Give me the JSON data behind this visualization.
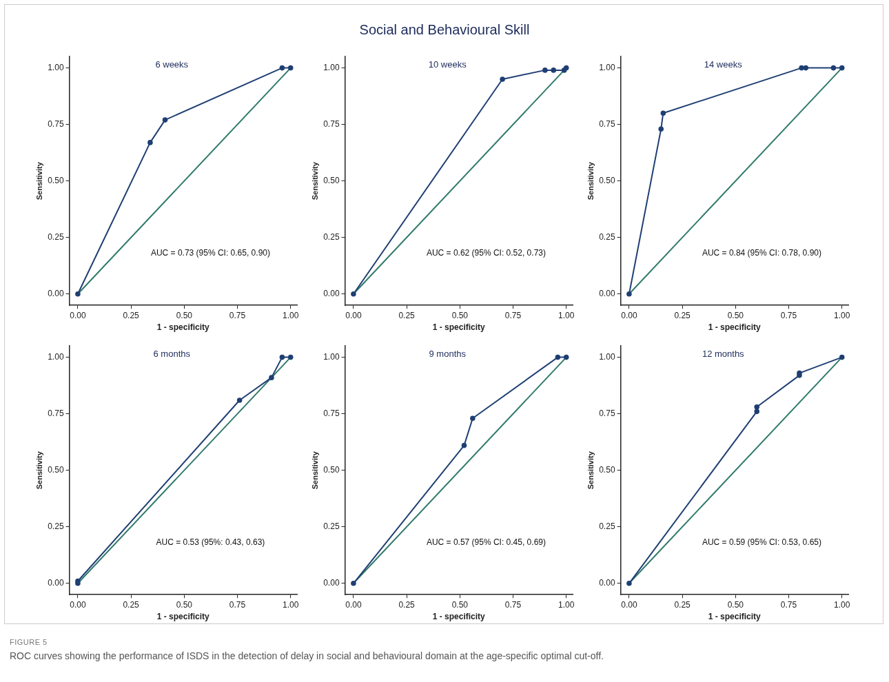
{
  "chart_data": [
    {
      "type": "line",
      "title": "6 weeks",
      "xlabel": "1 - specificity",
      "ylabel": "Sensitivity",
      "xlim": [
        -0.04,
        1.03
      ],
      "ylim": [
        -0.05,
        1.05
      ],
      "xticks": [
        {
          "value": 0,
          "label": "0.00"
        },
        {
          "value": 0.25,
          "label": "0.25"
        },
        {
          "value": 0.5,
          "label": "0.50"
        },
        {
          "value": 0.75,
          "label": "0.75"
        },
        {
          "value": 1,
          "label": "1.00"
        }
      ],
      "yticks": [
        {
          "value": 0,
          "label": "0.00"
        },
        {
          "value": 0.25,
          "label": "0.25"
        },
        {
          "value": 0.5,
          "label": "0.50"
        },
        {
          "value": 0.75,
          "label": "0.75"
        },
        {
          "value": 1,
          "label": "1.00"
        }
      ],
      "grid": false,
      "legend": false,
      "marker": "circle",
      "line_style": "solid",
      "series": [
        {
          "color": "#1f3f73",
          "x": [
            0,
            0.34,
            0.41,
            0.96,
            1
          ],
          "values": [
            0,
            0.67,
            0.77,
            1,
            1
          ]
        },
        {
          "color": "#2f7a6a",
          "marker": "none",
          "x": [
            0,
            1
          ],
          "values": [
            0,
            1
          ]
        }
      ],
      "annotations": [
        "AUC = 0.73 (95% CI: 0.65, 0.90)"
      ]
    },
    {
      "type": "line",
      "title": "10 weeks",
      "xlabel": "1 - specificity",
      "ylabel": "Sensitivity",
      "xlim": [
        -0.04,
        1.03
      ],
      "ylim": [
        -0.05,
        1.05
      ],
      "xticks": [
        {
          "value": 0,
          "label": "0.00"
        },
        {
          "value": 0.25,
          "label": "0.25"
        },
        {
          "value": 0.5,
          "label": "0.50"
        },
        {
          "value": 0.75,
          "label": "0.75"
        },
        {
          "value": 1,
          "label": "1.00"
        }
      ],
      "yticks": [
        {
          "value": 0,
          "label": "0.00"
        },
        {
          "value": 0.25,
          "label": "0.25"
        },
        {
          "value": 0.5,
          "label": "0.50"
        },
        {
          "value": 0.75,
          "label": "0.75"
        },
        {
          "value": 1,
          "label": "1.00"
        }
      ],
      "grid": false,
      "legend": false,
      "marker": "circle",
      "line_style": "solid",
      "series": [
        {
          "color": "#1f3f73",
          "x": [
            0,
            0.7,
            0.9,
            0.94,
            0.99,
            1
          ],
          "values": [
            0,
            0.95,
            0.99,
            0.99,
            0.99,
            1
          ]
        },
        {
          "color": "#2f7a6a",
          "marker": "none",
          "x": [
            0,
            1
          ],
          "values": [
            0,
            1
          ]
        }
      ],
      "annotations": [
        "AUC = 0.62 (95% CI: 0.52, 0.73)",
        "Social and Behavioural Skill"
      ]
    },
    {
      "type": "line",
      "title": "14 weeks",
      "xlabel": "1 - specificity",
      "ylabel": "Sensitivity",
      "xlim": [
        -0.04,
        1.03
      ],
      "ylim": [
        -0.05,
        1.05
      ],
      "xticks": [
        {
          "value": 0,
          "label": "0.00"
        },
        {
          "value": 0.25,
          "label": "0.25"
        },
        {
          "value": 0.5,
          "label": "0.50"
        },
        {
          "value": 0.75,
          "label": "0.75"
        },
        {
          "value": 1,
          "label": "1.00"
        }
      ],
      "yticks": [
        {
          "value": 0,
          "label": "0.00"
        },
        {
          "value": 0.25,
          "label": "0.25"
        },
        {
          "value": 0.5,
          "label": "0.50"
        },
        {
          "value": 0.75,
          "label": "0.75"
        },
        {
          "value": 1,
          "label": "1.00"
        }
      ],
      "grid": false,
      "legend": false,
      "marker": "circle",
      "line_style": "solid",
      "series": [
        {
          "color": "#1f3f73",
          "x": [
            0,
            0.15,
            0.16,
            0.81,
            0.83,
            0.96,
            1
          ],
          "values": [
            0,
            0.73,
            0.8,
            1,
            1,
            1,
            1
          ]
        },
        {
          "color": "#2f7a6a",
          "marker": "none",
          "x": [
            0,
            1
          ],
          "values": [
            0,
            1
          ]
        }
      ],
      "annotations": [
        "AUC = 0.84 (95% CI: 0.78, 0.90)"
      ]
    },
    {
      "type": "line",
      "title": "6 months",
      "xlabel": "1 - specificity",
      "ylabel": "Sensitivity",
      "xlim": [
        -0.04,
        1.03
      ],
      "ylim": [
        -0.05,
        1.05
      ],
      "xticks": [
        {
          "value": 0,
          "label": "0.00"
        },
        {
          "value": 0.25,
          "label": "0.25"
        },
        {
          "value": 0.5,
          "label": "0.50"
        },
        {
          "value": 0.75,
          "label": "0.75"
        },
        {
          "value": 1,
          "label": "1.00"
        }
      ],
      "yticks": [
        {
          "value": 0,
          "label": "0.00"
        },
        {
          "value": 0.25,
          "label": "0.25"
        },
        {
          "value": 0.5,
          "label": "0.50"
        },
        {
          "value": 0.75,
          "label": "0.75"
        },
        {
          "value": 1,
          "label": "1.00"
        }
      ],
      "grid": false,
      "legend": false,
      "marker": "circle",
      "line_style": "solid",
      "series": [
        {
          "color": "#1f3f73",
          "x": [
            0,
            0,
            0.76,
            0.91,
            0.96,
            1
          ],
          "values": [
            0,
            0.01,
            0.81,
            0.91,
            1,
            1
          ]
        },
        {
          "color": "#2f7a6a",
          "marker": "none",
          "x": [
            0,
            1
          ],
          "values": [
            0,
            1
          ]
        }
      ],
      "annotations": [
        "AUC = 0.53 (95%: 0.43, 0.63)"
      ]
    },
    {
      "type": "line",
      "title": "9 months",
      "xlabel": "1 - specificity",
      "ylabel": "Sensitivity",
      "xlim": [
        -0.04,
        1.03
      ],
      "ylim": [
        -0.05,
        1.05
      ],
      "xticks": [
        {
          "value": 0,
          "label": "0.00"
        },
        {
          "value": 0.25,
          "label": "0.25"
        },
        {
          "value": 0.5,
          "label": "0.50"
        },
        {
          "value": 0.75,
          "label": "0.75"
        },
        {
          "value": 1,
          "label": "1.00"
        }
      ],
      "yticks": [
        {
          "value": 0,
          "label": "0.00"
        },
        {
          "value": 0.25,
          "label": "0.25"
        },
        {
          "value": 0.5,
          "label": "0.50"
        },
        {
          "value": 0.75,
          "label": "0.75"
        },
        {
          "value": 1,
          "label": "1.00"
        }
      ],
      "grid": false,
      "legend": false,
      "marker": "circle",
      "line_style": "solid",
      "series": [
        {
          "color": "#1f3f73",
          "x": [
            0,
            0.52,
            0.56,
            0.96,
            1
          ],
          "values": [
            0,
            0.61,
            0.73,
            1,
            1
          ]
        },
        {
          "color": "#2f7a6a",
          "marker": "none",
          "x": [
            0,
            1
          ],
          "values": [
            0,
            1
          ]
        }
      ],
      "annotations": [
        "AUC = 0.57 (95% CI: 0.45, 0.69)"
      ]
    },
    {
      "type": "line",
      "title": "12 months",
      "xlabel": "1 - specificity",
      "ylabel": "Sensitivity",
      "xlim": [
        -0.04,
        1.03
      ],
      "ylim": [
        -0.05,
        1.05
      ],
      "xticks": [
        {
          "value": 0,
          "label": "0.00"
        },
        {
          "value": 0.25,
          "label": "0.25"
        },
        {
          "value": 0.5,
          "label": "0.50"
        },
        {
          "value": 0.75,
          "label": "0.75"
        },
        {
          "value": 1,
          "label": "1.00"
        }
      ],
      "yticks": [
        {
          "value": 0,
          "label": "0.00"
        },
        {
          "value": 0.25,
          "label": "0.25"
        },
        {
          "value": 0.5,
          "label": "0.50"
        },
        {
          "value": 0.75,
          "label": "0.75"
        },
        {
          "value": 1,
          "label": "1.00"
        }
      ],
      "grid": false,
      "legend": false,
      "marker": "circle",
      "line_style": "solid",
      "series": [
        {
          "color": "#1f3f73",
          "x": [
            0,
            0.6,
            0.6,
            0.8,
            0.8,
            1
          ],
          "values": [
            0,
            0.76,
            0.78,
            0.92,
            0.93,
            1
          ]
        },
        {
          "color": "#2f7a6a",
          "marker": "none",
          "x": [
            0,
            1
          ],
          "values": [
            0,
            1
          ]
        }
      ],
      "annotations": [
        "AUC = 0.59 (95% CI: 0.53, 0.65)",
        "FIGURE 5",
        "ROC curves showing the performance of ISDS in the detection of delay in social and behavioural domain at the age-specific optimal cut-off."
      ]
    }
  ]
}
